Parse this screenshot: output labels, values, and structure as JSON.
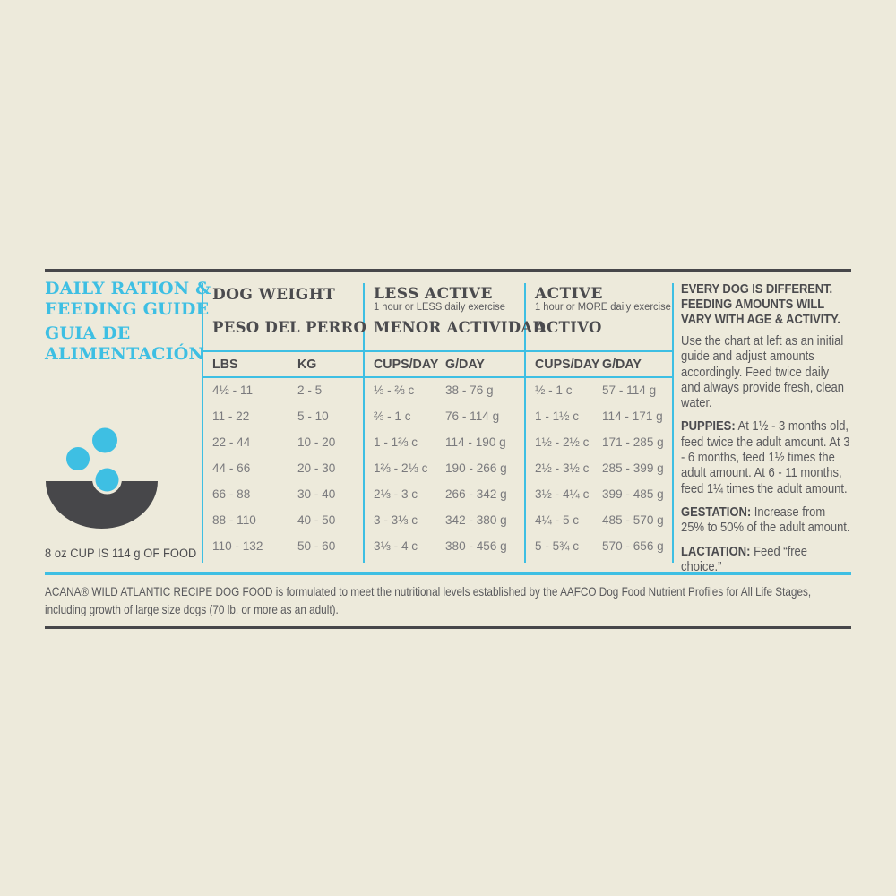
{
  "colors": {
    "background": "#EDEADB",
    "accent": "#3EBFE3",
    "dark_rule": "#47474A",
    "heading_text": "#4B4B4E",
    "body_text": "#59595C",
    "cell_text": "#7A7A7D"
  },
  "title": {
    "en_line1": "DAILY RATION &",
    "en_line2": "FEEDING GUIDE",
    "es_line1": "GUIA DE",
    "es_line2": "ALIMENTACIÓN"
  },
  "icon": "dog-food-bowl-with-kibble",
  "cup_note": "8 oz CUP IS 114 g OF FOOD",
  "table": {
    "weight": {
      "en": "DOG WEIGHT",
      "es": "PESO DEL PERRO"
    },
    "less_active": {
      "en": "LESS ACTIVE",
      "note": "1 hour or LESS daily exercise",
      "es": "MENOR ACTIVIDAD"
    },
    "active": {
      "en": "ACTIVE",
      "note": "1 hour or MORE daily exercise",
      "es": "ACTIVO"
    },
    "columns": [
      "LBS",
      "KG",
      "CUPS/DAY",
      "G/DAY",
      "CUPS/DAY",
      "G/DAY"
    ],
    "rows": [
      [
        "4½ - 11",
        "2 - 5",
        "⅓ - ⅔ c",
        "38 - 76 g",
        "½ - 1 c",
        "57 - 114 g"
      ],
      [
        "11 - 22",
        "5 - 10",
        "⅔ - 1 c",
        "76 - 114 g",
        "1 - 1½ c",
        "114 - 171 g"
      ],
      [
        "22 - 44",
        "10 - 20",
        "1 - 1⅔ c",
        "114 - 190 g",
        "1½ - 2½ c",
        "171 - 285 g"
      ],
      [
        "44 - 66",
        "20 - 30",
        "1⅔ - 2⅓ c",
        "190 - 266 g",
        "2½ - 3½ c",
        "285 - 399 g"
      ],
      [
        "66 - 88",
        "30 - 40",
        "2⅓ - 3 c",
        "266 - 342 g",
        "3½ - 4¼ c",
        "399 - 485 g"
      ],
      [
        "88 - 110",
        "40 - 50",
        "3 - 3⅓ c",
        "342 - 380 g",
        "4¼ - 5 c",
        "485 - 570 g"
      ],
      [
        "110 - 132",
        "50 - 60",
        "3⅓ - 4 c",
        "380 - 456 g",
        "5 - 5¾ c",
        "570 - 656 g"
      ]
    ]
  },
  "advice": {
    "heading": "EVERY DOG IS DIFFERENT. FEEDING AMOUNTS WILL VARY WITH AGE & ACTIVITY.",
    "intro": "Use the chart at left as an initial guide and adjust amounts accordingly. Feed twice daily and always provide fresh, clean water.",
    "puppies_label": "PUPPIES:",
    "puppies_text": " At 1½ - 3 months old, feed twice the adult amount. At 3 - 6 months, feed 1½ times the adult amount. At 6 - 11 months, feed 1¼ times the adult amount.",
    "gestation_label": "GESTATION:",
    "gestation_text": " Increase from 25% to 50% of the adult amount.",
    "lactation_label": "LACTATION:",
    "lactation_text": " Feed “free choice.”"
  },
  "footer": "ACANA® WILD ATLANTIC RECIPE DOG FOOD is formulated to meet the nutritional levels established by the AAFCO Dog Food Nutrient Profiles for All Life Stages, including growth of large size dogs (70 lb. or more as an adult)."
}
